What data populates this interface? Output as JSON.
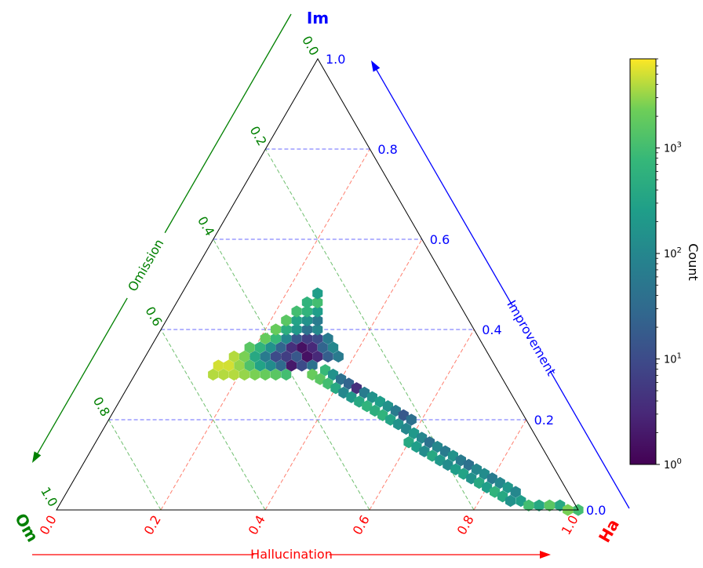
{
  "chart_data": {
    "type": "heatmap",
    "subtype": "ternary-hexbin",
    "corner_labels": {
      "top": "Im",
      "left": "Om",
      "right": "Ha"
    },
    "axes": {
      "improvement": {
        "label": "Improvement",
        "color": "#0000ff",
        "ticks": [
          "0.0",
          "0.2",
          "0.4",
          "0.6",
          "0.8",
          "1.0"
        ]
      },
      "omission": {
        "label": "Omission",
        "color": "#008000",
        "ticks": [
          "0.0",
          "0.2",
          "0.4",
          "0.6",
          "0.8",
          "1.0"
        ]
      },
      "hallucination": {
        "label": "Hallucination",
        "color": "#ff0000",
        "ticks": [
          "0.0",
          "0.2",
          "0.4",
          "0.6",
          "0.8",
          "1.0"
        ]
      }
    },
    "grid": true,
    "colorbar": {
      "label": "Count",
      "scale": "log",
      "colormap": "viridis",
      "range": [
        1,
        7000
      ],
      "ticks": [
        {
          "value": 1,
          "base": "10",
          "exp": "0"
        },
        {
          "value": 10,
          "base": "10",
          "exp": "1"
        },
        {
          "value": 100,
          "base": "10",
          "exp": "2"
        },
        {
          "value": 1000,
          "base": "10",
          "exp": "3"
        }
      ]
    },
    "note": "points are [hallucination, improvement, log10(count)]",
    "points": [
      [
        0.15,
        0.3,
        3.6
      ],
      [
        0.17,
        0.3,
        3.6
      ],
      [
        0.19,
        0.3,
        3.6
      ],
      [
        0.21,
        0.3,
        3.5
      ],
      [
        0.23,
        0.3,
        3.4
      ],
      [
        0.25,
        0.3,
        3.3
      ],
      [
        0.27,
        0.3,
        3.2
      ],
      [
        0.29,
        0.3,
        3.0
      ],
      [
        0.15,
        0.32,
        3.7
      ],
      [
        0.17,
        0.32,
        3.7
      ],
      [
        0.19,
        0.32,
        3.5
      ],
      [
        0.21,
        0.32,
        3.1
      ],
      [
        0.23,
        0.32,
        2.5
      ],
      [
        0.25,
        0.32,
        2.1
      ],
      [
        0.27,
        0.32,
        1.5
      ],
      [
        0.29,
        0.32,
        0.3
      ],
      [
        0.31,
        0.32,
        1.0
      ],
      [
        0.33,
        0.32,
        1.6
      ],
      [
        0.17,
        0.34,
        3.6
      ],
      [
        0.19,
        0.34,
        3.4
      ],
      [
        0.21,
        0.34,
        2.6
      ],
      [
        0.23,
        0.34,
        1.8
      ],
      [
        0.25,
        0.34,
        1.0
      ],
      [
        0.27,
        0.34,
        0.8
      ],
      [
        0.29,
        0.34,
        1.2
      ],
      [
        0.31,
        0.34,
        0.2
      ],
      [
        0.33,
        0.34,
        0.5
      ],
      [
        0.35,
        0.34,
        1.3
      ],
      [
        0.37,
        0.34,
        1.8
      ],
      [
        0.19,
        0.36,
        3.2
      ],
      [
        0.21,
        0.36,
        2.8
      ],
      [
        0.23,
        0.36,
        2.2
      ],
      [
        0.25,
        0.36,
        1.4
      ],
      [
        0.27,
        0.36,
        0.6
      ],
      [
        0.29,
        0.36,
        0.2
      ],
      [
        0.31,
        0.36,
        0.5
      ],
      [
        0.33,
        0.36,
        1.4
      ],
      [
        0.35,
        0.36,
        2.0
      ],
      [
        0.21,
        0.38,
        3.3
      ],
      [
        0.23,
        0.38,
        2.9
      ],
      [
        0.25,
        0.38,
        2.0
      ],
      [
        0.27,
        0.38,
        1.2
      ],
      [
        0.29,
        0.38,
        0.8
      ],
      [
        0.31,
        0.38,
        1.0
      ],
      [
        0.33,
        0.38,
        1.8
      ],
      [
        0.22,
        0.4,
        3.3
      ],
      [
        0.24,
        0.4,
        2.7
      ],
      [
        0.26,
        0.4,
        2.3
      ],
      [
        0.28,
        0.4,
        1.6
      ],
      [
        0.3,
        0.4,
        2.0
      ],
      [
        0.23,
        0.42,
        3.2
      ],
      [
        0.25,
        0.42,
        2.5
      ],
      [
        0.27,
        0.42,
        2.2
      ],
      [
        0.29,
        0.42,
        1.8
      ],
      [
        0.24,
        0.44,
        3.0
      ],
      [
        0.26,
        0.44,
        2.8
      ],
      [
        0.28,
        0.44,
        2.4
      ],
      [
        0.25,
        0.46,
        2.8
      ],
      [
        0.27,
        0.46,
        3.0
      ],
      [
        0.26,
        0.48,
        2.4
      ],
      [
        0.34,
        0.3,
        3.3
      ],
      [
        0.36,
        0.29,
        3.2
      ],
      [
        0.38,
        0.28,
        3.0
      ],
      [
        0.4,
        0.27,
        2.6
      ],
      [
        0.42,
        0.26,
        2.0
      ],
      [
        0.44,
        0.25,
        2.3
      ],
      [
        0.46,
        0.24,
        2.6
      ],
      [
        0.48,
        0.23,
        2.8
      ],
      [
        0.36,
        0.31,
        2.9
      ],
      [
        0.38,
        0.3,
        2.2
      ],
      [
        0.4,
        0.29,
        1.6
      ],
      [
        0.42,
        0.28,
        1.4
      ],
      [
        0.44,
        0.27,
        0.6
      ],
      [
        0.46,
        0.26,
        1.8
      ],
      [
        0.48,
        0.25,
        2.2
      ],
      [
        0.5,
        0.24,
        2.4
      ],
      [
        0.5,
        0.22,
        2.7
      ],
      [
        0.52,
        0.21,
        2.8
      ],
      [
        0.54,
        0.2,
        2.5
      ],
      [
        0.56,
        0.19,
        2.2
      ],
      [
        0.58,
        0.18,
        2.0
      ],
      [
        0.6,
        0.17,
        2.3
      ],
      [
        0.52,
        0.23,
        2.2
      ],
      [
        0.54,
        0.22,
        1.8
      ],
      [
        0.56,
        0.21,
        1.2
      ],
      [
        0.58,
        0.2,
        1.6
      ],
      [
        0.6,
        0.15,
        2.6
      ],
      [
        0.62,
        0.14,
        2.4
      ],
      [
        0.64,
        0.13,
        2.1
      ],
      [
        0.66,
        0.12,
        2.6
      ],
      [
        0.68,
        0.11,
        2.3
      ],
      [
        0.7,
        0.1,
        2.1
      ],
      [
        0.72,
        0.09,
        2.4
      ],
      [
        0.62,
        0.16,
        2.0
      ],
      [
        0.64,
        0.15,
        1.6
      ],
      [
        0.66,
        0.14,
        2.0
      ],
      [
        0.68,
        0.13,
        1.8
      ],
      [
        0.7,
        0.12,
        2.2
      ],
      [
        0.72,
        0.11,
        1.8
      ],
      [
        0.74,
        0.1,
        1.6
      ],
      [
        0.74,
        0.08,
        2.5
      ],
      [
        0.76,
        0.07,
        2.2
      ],
      [
        0.78,
        0.06,
        2.6
      ],
      [
        0.8,
        0.05,
        2.4
      ],
      [
        0.82,
        0.04,
        2.8
      ],
      [
        0.84,
        0.03,
        2.6
      ],
      [
        0.86,
        0.02,
        2.2
      ],
      [
        0.76,
        0.09,
        2.0
      ],
      [
        0.78,
        0.08,
        2.1
      ],
      [
        0.8,
        0.07,
        1.8
      ],
      [
        0.82,
        0.06,
        2.0
      ],
      [
        0.84,
        0.05,
        2.3
      ],
      [
        0.86,
        0.04,
        2.0
      ],
      [
        0.88,
        0.02,
        2.4
      ],
      [
        0.9,
        0.01,
        3.0
      ],
      [
        0.92,
        0.01,
        2.6
      ],
      [
        0.94,
        0.01,
        3.2
      ],
      [
        0.96,
        0.01,
        2.6
      ],
      [
        0.98,
        0.0,
        3.4
      ],
      [
        1.0,
        0.0,
        3.0
      ]
    ]
  }
}
